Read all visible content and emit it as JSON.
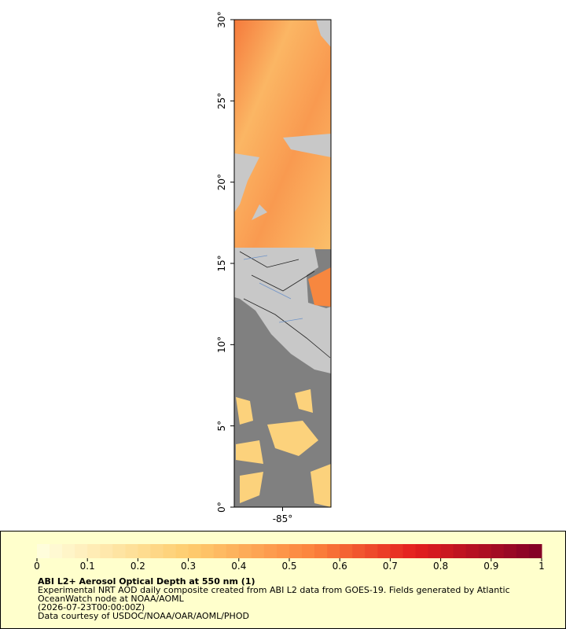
{
  "map": {
    "xlim": [
      -88,
      -82
    ],
    "ylim": [
      0,
      30
    ],
    "xticks": [
      {
        "value": -85,
        "label": "-85°"
      }
    ],
    "yticks": [
      {
        "value": 0,
        "label": "0°"
      },
      {
        "value": 5,
        "label": "5°"
      },
      {
        "value": 10,
        "label": "10°"
      },
      {
        "value": 15,
        "label": "15°"
      },
      {
        "value": 20,
        "label": "20°"
      },
      {
        "value": 25,
        "label": "25°"
      },
      {
        "value": 30,
        "label": "30°"
      }
    ]
  },
  "colorbar": {
    "lim": [
      0,
      1
    ],
    "ticks": [
      0,
      0.1,
      0.2,
      0.3,
      0.4,
      0.5,
      0.6,
      0.7,
      0.8,
      0.9,
      1
    ]
  },
  "legend": {
    "title": "ABI L2+ Aerosol Optical Depth at 550 nm (1)",
    "lines": [
      "Experimental NRT AOD daily composite created from ABI L2 data from GOES-19. Fields generated by Atlantic",
      "OceanWatch node at NOAA/AOML",
      "(2026-07-23T00:00:00Z)",
      "Data courtesy of USDOC/NOAA/OAR/AOML/PHOD"
    ]
  }
}
